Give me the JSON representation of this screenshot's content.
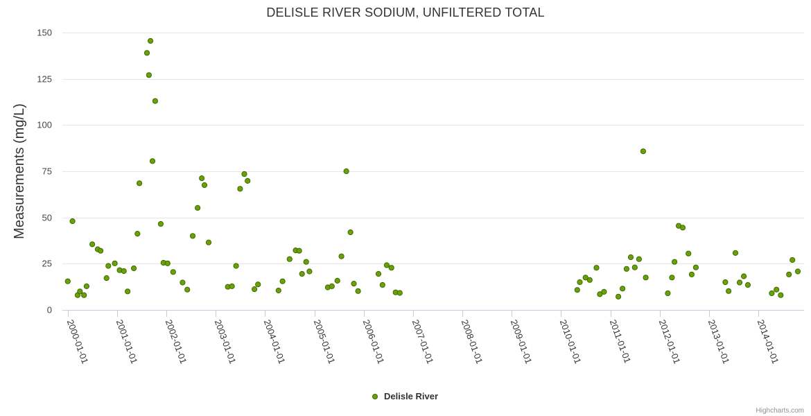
{
  "chart_data": {
    "type": "scatter",
    "title": "DELISLE RIVER SODIUM, UNFILTERED TOTAL",
    "ylabel": "Measurements (mg/L)",
    "xlabel": "",
    "ylim": [
      0,
      150
    ],
    "yticks": [
      0,
      25,
      50,
      75,
      100,
      125,
      150
    ],
    "xlim": [
      "1999-11-23",
      "2014-12-05"
    ],
    "xticks": [
      "2000-01-01",
      "2001-01-01",
      "2002-01-01",
      "2003-01-01",
      "2004-01-01",
      "2005-01-01",
      "2006-01-01",
      "2007-01-01",
      "2008-01-01",
      "2009-01-01",
      "2010-01-01",
      "2011-01-01",
      "2012-01-01",
      "2013-01-01",
      "2014-01-01"
    ],
    "grid": true,
    "legend": "bottom-center",
    "series": [
      {
        "name": "Delisle River",
        "color": "#6aa10a",
        "stroke": "#3c6a00",
        "points": [
          [
            "2000-01-02",
            15.5
          ],
          [
            "2000-02-06",
            48
          ],
          [
            "2000-03-15",
            8
          ],
          [
            "2000-04-01",
            10
          ],
          [
            "2000-05-01",
            8
          ],
          [
            "2000-05-20",
            12.8
          ],
          [
            "2000-07-01",
            35.5
          ],
          [
            "2000-08-10",
            32.8
          ],
          [
            "2000-09-01",
            32
          ],
          [
            "2000-10-15",
            17.2
          ],
          [
            "2000-10-28",
            23.8
          ],
          [
            "2000-12-15",
            25.2
          ],
          [
            "2001-01-20",
            21.5
          ],
          [
            "2001-02-20",
            21
          ],
          [
            "2001-03-20",
            10
          ],
          [
            "2001-05-05",
            22.5
          ],
          [
            "2001-06-01",
            41.2
          ],
          [
            "2001-06-15",
            68.5
          ],
          [
            "2001-08-10",
            139
          ],
          [
            "2001-08-25",
            127
          ],
          [
            "2001-09-05",
            145.5
          ],
          [
            "2001-09-20",
            80.5
          ],
          [
            "2001-10-10",
            113
          ],
          [
            "2001-11-20",
            46.5
          ],
          [
            "2001-12-10",
            25.5
          ],
          [
            "2002-01-10",
            25.2
          ],
          [
            "2002-02-20",
            20.5
          ],
          [
            "2002-05-01",
            14.8
          ],
          [
            "2002-06-05",
            11
          ],
          [
            "2002-07-15",
            40
          ],
          [
            "2002-08-20",
            55.2
          ],
          [
            "2002-09-20",
            71.2
          ],
          [
            "2002-10-10",
            67.5
          ],
          [
            "2002-11-10",
            36.5
          ],
          [
            "2003-04-01",
            12.5
          ],
          [
            "2003-05-01",
            12.8
          ],
          [
            "2003-06-01",
            23.8
          ],
          [
            "2003-07-01",
            65.5
          ],
          [
            "2003-08-01",
            73.5
          ],
          [
            "2003-08-25",
            69.8
          ],
          [
            "2003-10-15",
            11.2
          ],
          [
            "2003-11-10",
            13.8
          ],
          [
            "2004-04-10",
            10.5
          ],
          [
            "2004-05-10",
            15.5
          ],
          [
            "2004-07-01",
            27.5
          ],
          [
            "2004-08-15",
            32.2
          ],
          [
            "2004-09-10",
            32
          ],
          [
            "2004-10-01",
            19.5
          ],
          [
            "2004-11-01",
            26
          ],
          [
            "2004-11-25",
            20.8
          ],
          [
            "2005-04-10",
            12.2
          ],
          [
            "2005-05-10",
            12.8
          ],
          [
            "2005-06-20",
            15.8
          ],
          [
            "2005-07-20",
            29
          ],
          [
            "2005-08-25",
            75
          ],
          [
            "2005-09-25",
            42
          ],
          [
            "2005-10-20",
            14.2
          ],
          [
            "2005-11-20",
            10.2
          ],
          [
            "2006-04-20",
            19.5
          ],
          [
            "2006-05-20",
            13.5
          ],
          [
            "2006-06-20",
            24.2
          ],
          [
            "2006-07-25",
            22.8
          ],
          [
            "2006-08-25",
            9.5
          ],
          [
            "2006-09-25",
            9.2
          ],
          [
            "2010-05-01",
            10.8
          ],
          [
            "2010-05-20",
            15
          ],
          [
            "2010-07-01",
            17.5
          ],
          [
            "2010-08-01",
            16.2
          ],
          [
            "2010-09-20",
            22.8
          ],
          [
            "2010-10-15",
            8.5
          ],
          [
            "2010-11-15",
            9.8
          ],
          [
            "2011-03-01",
            7.2
          ],
          [
            "2011-04-01",
            11.5
          ],
          [
            "2011-05-01",
            22.2
          ],
          [
            "2011-06-01",
            28.5
          ],
          [
            "2011-07-01",
            23
          ],
          [
            "2011-08-01",
            27.5
          ],
          [
            "2011-09-01",
            85.8
          ],
          [
            "2011-09-20",
            17.5
          ],
          [
            "2012-03-01",
            9
          ],
          [
            "2012-04-01",
            17.5
          ],
          [
            "2012-04-20",
            26
          ],
          [
            "2012-05-20",
            45.5
          ],
          [
            "2012-06-20",
            44.5
          ],
          [
            "2012-08-01",
            30.5
          ],
          [
            "2012-08-25",
            19.2
          ],
          [
            "2012-09-25",
            23
          ],
          [
            "2013-05-01",
            15
          ],
          [
            "2013-05-25",
            10.2
          ],
          [
            "2013-07-15",
            30.8
          ],
          [
            "2013-08-15",
            14.8
          ],
          [
            "2013-09-15",
            18.2
          ],
          [
            "2013-10-15",
            13.5
          ],
          [
            "2014-04-10",
            9
          ],
          [
            "2014-05-15",
            11
          ],
          [
            "2014-06-15",
            8
          ],
          [
            "2014-08-15",
            19.2
          ],
          [
            "2014-09-10",
            27
          ],
          [
            "2014-10-20",
            20.8
          ]
        ]
      }
    ]
  },
  "credits": "Highcharts.com"
}
